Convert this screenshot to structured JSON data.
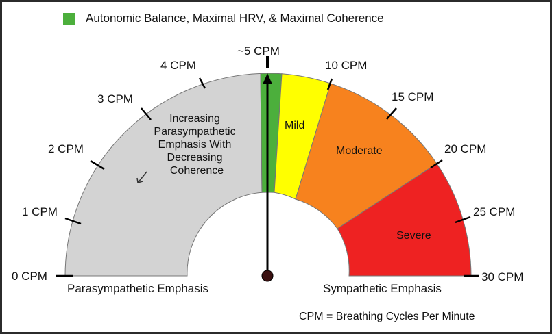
{
  "legend": {
    "color": "#4caf3c",
    "label": "Autonomic Balance, Maximal HRV, & Maximal Coherence"
  },
  "scale": {
    "min_cpm": 0,
    "max_cpm": 30,
    "tick_labels": [
      "0 CPM",
      "1 CPM",
      "2 CPM",
      "3 CPM",
      "4 CPM",
      "~5 CPM",
      "10 CPM",
      "15 CPM",
      "20 CPM",
      "25 CPM",
      "30 CPM"
    ]
  },
  "zones": [
    {
      "name": "parasympathetic",
      "color": "#d3d3d3",
      "lines": [
        "Increasing",
        "Parasympathetic",
        "Emphasis With",
        "Decreasing",
        "Coherence"
      ]
    },
    {
      "name": "balance",
      "color": "#4caf3c",
      "lines": []
    },
    {
      "name": "mild",
      "color": "#ffff00",
      "lines": [
        "Mild"
      ]
    },
    {
      "name": "moderate",
      "color": "#f7821e",
      "lines": [
        "Moderate"
      ]
    },
    {
      "name": "severe",
      "color": "#ee2222",
      "lines": [
        "Severe"
      ]
    }
  ],
  "needle": {
    "value_label": "~5 CPM",
    "color": "#000000",
    "pivot_color": "#3a1010"
  },
  "bottom_labels": {
    "left": "Parasympathetic Emphasis",
    "right": "Sympathetic Emphasis"
  },
  "footnote": "CPM = Breathing Cycles Per Minute"
}
